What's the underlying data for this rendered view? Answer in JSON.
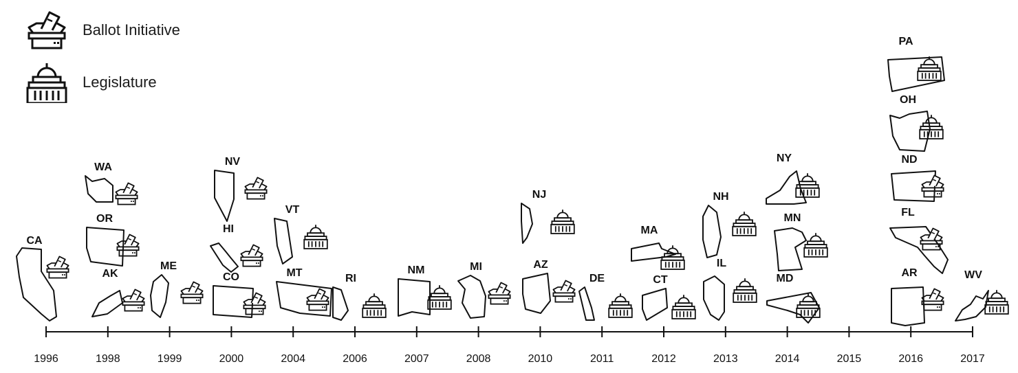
{
  "legend": {
    "ballot_label": "Ballot Initiative",
    "legislature_label": "Legislature",
    "ballot_icon": "ballot-box-icon",
    "legislature_icon": "capitol-building-icon"
  },
  "timeline": {
    "years": [
      "1996",
      "1998",
      "1999",
      "2000",
      "2004",
      "2006",
      "2007",
      "2008",
      "2010",
      "2011",
      "2012",
      "2013",
      "2014",
      "2015",
      "2016",
      "2017"
    ]
  },
  "states": [
    {
      "abbr": "CA",
      "year": "1996",
      "method": "ballot"
    },
    {
      "abbr": "WA",
      "year": "1998",
      "method": "ballot"
    },
    {
      "abbr": "OR",
      "year": "1998",
      "method": "ballot"
    },
    {
      "abbr": "AK",
      "year": "1998",
      "method": "ballot"
    },
    {
      "abbr": "ME",
      "year": "1999",
      "method": "ballot"
    },
    {
      "abbr": "NV",
      "year": "2000",
      "method": "ballot"
    },
    {
      "abbr": "HI",
      "year": "2000",
      "method": "ballot"
    },
    {
      "abbr": "CO",
      "year": "2000",
      "method": "ballot"
    },
    {
      "abbr": "VT",
      "year": "2004",
      "method": "legislature"
    },
    {
      "abbr": "MT",
      "year": "2004",
      "method": "ballot"
    },
    {
      "abbr": "RI",
      "year": "2006",
      "method": "legislature"
    },
    {
      "abbr": "NM",
      "year": "2007",
      "method": "legislature"
    },
    {
      "abbr": "MI",
      "year": "2008",
      "method": "ballot"
    },
    {
      "abbr": "NJ",
      "year": "2010",
      "method": "legislature"
    },
    {
      "abbr": "AZ",
      "year": "2010",
      "method": "ballot"
    },
    {
      "abbr": "DE",
      "year": "2011",
      "method": "legislature"
    },
    {
      "abbr": "MA",
      "year": "2012",
      "method": "legislature"
    },
    {
      "abbr": "CT",
      "year": "2012",
      "method": "legislature"
    },
    {
      "abbr": "NH",
      "year": "2013",
      "method": "legislature"
    },
    {
      "abbr": "IL",
      "year": "2013",
      "method": "legislature"
    },
    {
      "abbr": "NY",
      "year": "2014",
      "method": "legislature"
    },
    {
      "abbr": "MN",
      "year": "2014",
      "method": "legislature"
    },
    {
      "abbr": "MD",
      "year": "2014",
      "method": "legislature"
    },
    {
      "abbr": "PA",
      "year": "2016",
      "method": "legislature"
    },
    {
      "abbr": "OH",
      "year": "2016",
      "method": "legislature"
    },
    {
      "abbr": "ND",
      "year": "2016",
      "method": "ballot"
    },
    {
      "abbr": "FL",
      "year": "2016",
      "method": "ballot"
    },
    {
      "abbr": "AR",
      "year": "2016",
      "method": "ballot"
    },
    {
      "abbr": "WV",
      "year": "2017",
      "method": "legislature"
    }
  ]
}
